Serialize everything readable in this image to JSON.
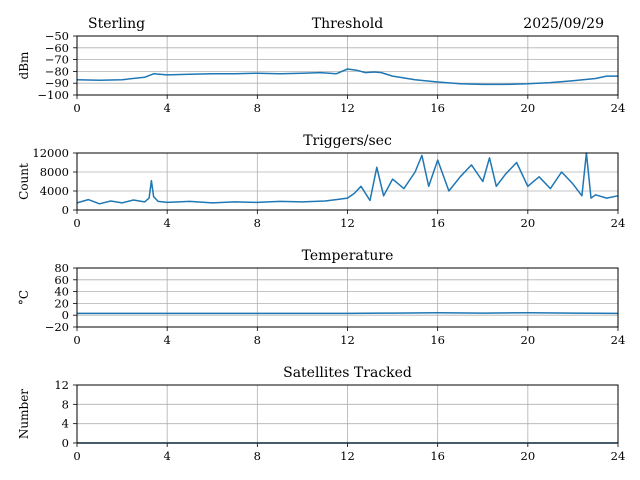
{
  "header": {
    "site": "Sterling",
    "date": "2025/09/29"
  },
  "colors": {
    "line": "#1f77b4",
    "grid": "#b0b0b0",
    "axis": "#000000"
  },
  "chart_data": [
    {
      "type": "line",
      "title": "Threshold",
      "ylabel": "dBm",
      "xlim": [
        0,
        24
      ],
      "ylim": [
        -100,
        -50
      ],
      "grid": true,
      "xticks": [
        "0",
        "4",
        "8",
        "12",
        "16",
        "20",
        "24"
      ],
      "yticks": [
        "−50",
        "−60",
        "−70",
        "−80",
        "−90",
        "−100"
      ],
      "series": [
        {
          "x": [
            0,
            1,
            2,
            3,
            3.4,
            4,
            5,
            6,
            7,
            8,
            9,
            10,
            10.8,
            11.5,
            12,
            12.4,
            12.8,
            13.2,
            13.5,
            14,
            15,
            16,
            17,
            18,
            19,
            20,
            21,
            22,
            23,
            23.5,
            24
          ],
          "y": [
            -87,
            -87.5,
            -87,
            -85,
            -82,
            -83,
            -82.5,
            -82,
            -82,
            -81.5,
            -82,
            -81.5,
            -81,
            -82,
            -78,
            -79,
            -81,
            -80.5,
            -81,
            -84,
            -87,
            -89,
            -90.5,
            -91,
            -91,
            -90.5,
            -89.5,
            -88,
            -86,
            -84,
            -84
          ]
        }
      ]
    },
    {
      "type": "line",
      "title": "Triggers/sec",
      "ylabel": "Count",
      "xlim": [
        0,
        24
      ],
      "ylim": [
        0,
        12000
      ],
      "grid": true,
      "xticks": [
        "0",
        "4",
        "8",
        "12",
        "16",
        "20",
        "24"
      ],
      "yticks": [
        "12000",
        "8000",
        "4000",
        "0"
      ],
      "series": [
        {
          "x": [
            0,
            0.5,
            1,
            1.5,
            2,
            2.5,
            3,
            3.2,
            3.3,
            3.4,
            3.6,
            4,
            5,
            6,
            7,
            8,
            9,
            10,
            11,
            11.5,
            12,
            12.3,
            12.6,
            13,
            13.3,
            13.6,
            14,
            14.5,
            15,
            15.3,
            15.6,
            16,
            16.5,
            17,
            17.5,
            18,
            18.3,
            18.6,
            19,
            19.5,
            20,
            20.5,
            21,
            21.5,
            22,
            22.4,
            22.6,
            22.8,
            23,
            23.5,
            24
          ],
          "y": [
            1500,
            2200,
            1300,
            1900,
            1500,
            2100,
            1700,
            2500,
            6200,
            2800,
            1800,
            1600,
            1800,
            1500,
            1700,
            1600,
            1800,
            1700,
            1900,
            2200,
            2500,
            3500,
            5000,
            2000,
            9000,
            3000,
            6500,
            4500,
            8000,
            11500,
            5000,
            10500,
            4000,
            7000,
            9500,
            6000,
            11000,
            5000,
            7500,
            10000,
            5000,
            7000,
            4500,
            8000,
            5500,
            3000,
            12000,
            2500,
            3200,
            2500,
            3000
          ]
        }
      ]
    },
    {
      "type": "line",
      "title": "Temperature",
      "ylabel": "°C",
      "xlim": [
        0,
        24
      ],
      "ylim": [
        -20,
        80
      ],
      "grid": true,
      "xticks": [
        "0",
        "4",
        "8",
        "12",
        "16",
        "20",
        "24"
      ],
      "yticks": [
        "80",
        "60",
        "40",
        "20",
        "0",
        "−20"
      ],
      "series": [
        {
          "x": [
            0,
            4,
            8,
            12,
            14,
            16,
            18,
            20,
            22,
            24
          ],
          "y": [
            3,
            3,
            3,
            3,
            3.5,
            4,
            3.5,
            4,
            3.5,
            3
          ]
        }
      ]
    },
    {
      "type": "line",
      "title": "Satellites Tracked",
      "ylabel": "Number",
      "xlim": [
        0,
        24
      ],
      "ylim": [
        0,
        12
      ],
      "grid": true,
      "xticks": [
        "0",
        "4",
        "8",
        "12",
        "16",
        "20",
        "24"
      ],
      "yticks": [
        "12",
        "8",
        "4",
        "0"
      ],
      "series": [
        {
          "x": [
            0,
            24
          ],
          "y": [
            0,
            0
          ]
        }
      ]
    }
  ]
}
